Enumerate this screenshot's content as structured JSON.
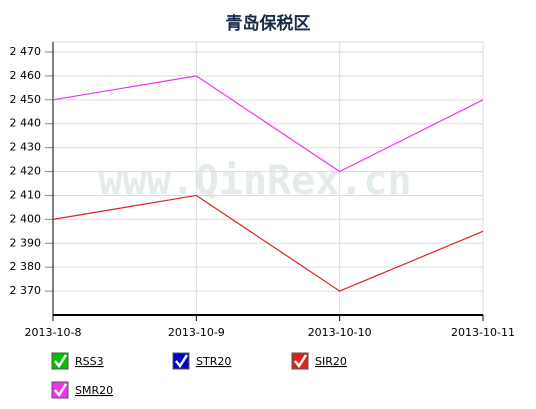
{
  "chart_data": {
    "type": "line",
    "title": "青岛保税区",
    "watermark": "www.QinRex.cn",
    "categories": [
      "2013-10-8",
      "2013-10-9",
      "2013-10-10",
      "2013-10-11"
    ],
    "series": [
      {
        "name": "RSS3",
        "color": "#00c000",
        "values": [
          null,
          null,
          null,
          null
        ]
      },
      {
        "name": "STR20",
        "color": "#0000cc",
        "values": [
          null,
          null,
          null,
          null
        ]
      },
      {
        "name": "SIR20",
        "color": "#dd2222",
        "values": [
          2400,
          2410,
          2370,
          2395
        ]
      },
      {
        "name": "SMR20",
        "color": "#ee33ee",
        "values": [
          2450,
          2460,
          2420,
          2450
        ]
      }
    ],
    "ylim": [
      2360,
      2470
    ],
    "yticks": [
      {
        "value": 2370,
        "label": "2 370"
      },
      {
        "value": 2380,
        "label": "2 380"
      },
      {
        "value": 2390,
        "label": "2 390"
      },
      {
        "value": 2400,
        "label": "2 400"
      },
      {
        "value": 2410,
        "label": "2 410"
      },
      {
        "value": 2420,
        "label": "2 420"
      },
      {
        "value": 2430,
        "label": "2 430"
      },
      {
        "value": 2440,
        "label": "2 440"
      },
      {
        "value": 2450,
        "label": "2 450"
      },
      {
        "value": 2460,
        "label": "2 460"
      },
      {
        "value": 2470,
        "label": "2 470"
      }
    ],
    "grid": true
  }
}
